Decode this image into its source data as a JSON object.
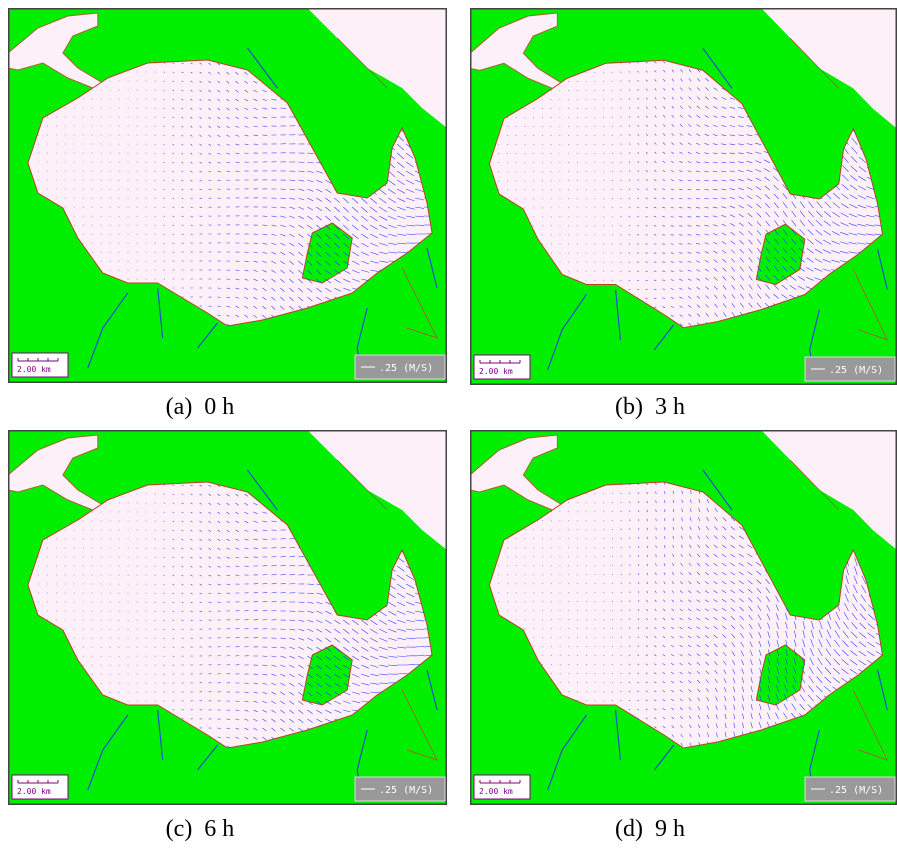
{
  "panels": [
    {
      "caption": "(a)  0 h",
      "scale_label": "2.00 km",
      "velocity_label": ".25 (M/S)"
    },
    {
      "caption": "(b)  3 h",
      "scale_label": "2.00 km",
      "velocity_label": ".25 (M/S)"
    },
    {
      "caption": "(c)  6 h",
      "scale_label": "2.00 km",
      "velocity_label": ".25 (M/S)"
    },
    {
      "caption": "(d)  9 h",
      "scale_label": "2.00 km",
      "velocity_label": ".25 (M/S)"
    }
  ]
}
